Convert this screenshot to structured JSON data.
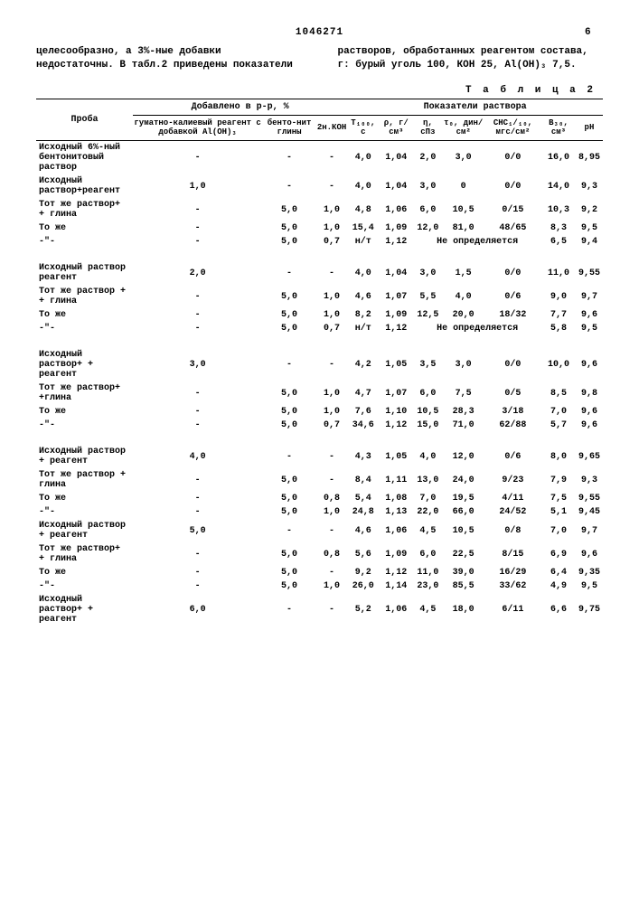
{
  "header": {
    "docnum": "1046271",
    "pg_right": "6"
  },
  "para": {
    "left": "целесообразно, а 3%-ные добавки недостаточны.\nВ табл.2 приведены показатели",
    "right": "растворов, обработанных реагентом состава, г: бурый уголь 100, КОН 25, Al(OH)₃ 7,5."
  },
  "table": {
    "caption": "Т а б л и ц а  2",
    "head": {
      "proba": "Проба",
      "group1": "Добавлено в р-р, %",
      "group2": "Показатели раствора",
      "c1": "гуматно-калиевый реагент с добавкой Al(OH)₃",
      "c2": "бенто-нит глины",
      "c3": "2н.КОН",
      "c4": "T₁₀₀, с",
      "c5": "ρ, г/см³",
      "c6": "η, сПз",
      "c7": "τ₀, дин/см²",
      "c8": "СНС₁/₁₀, мгс/см²",
      "c9": "В₃₀, см³",
      "c10": "pH"
    },
    "rows": [
      {
        "label": "Исходный 6%-ный бентонитовый раствор",
        "d": [
          "-",
          "-",
          "-",
          "4,0",
          "1,04",
          "2,0",
          "3,0",
          "0/0",
          "16,0",
          "8,95"
        ]
      },
      {
        "label": "Исходный раствор+реагент",
        "d": [
          "1,0",
          "-",
          "-",
          "4,0",
          "1,04",
          "3,0",
          "0",
          "0/0",
          "14,0",
          "9,3"
        ]
      },
      {
        "label": "Тот же раствор+ + глина",
        "d": [
          "-",
          "5,0",
          "1,0",
          "4,8",
          "1,06",
          "6,0",
          "10,5",
          "0/15",
          "10,3",
          "9,2"
        ]
      },
      {
        "label": "То же",
        "d": [
          "-",
          "5,0",
          "1,0",
          "15,4",
          "1,09",
          "12,0",
          "81,0",
          "48/65",
          "8,3",
          "9,5"
        ]
      },
      {
        "label": "-\"-",
        "d": [
          "-",
          "5,0",
          "0,7",
          "н/т",
          "1,12",
          "Не определяется",
          "",
          "",
          "6,5",
          "9,4"
        ],
        "merge": true
      },
      {
        "spacer": true
      },
      {
        "label": "Исходный раствор реагент",
        "d": [
          "2,0",
          "-",
          "-",
          "4,0",
          "1,04",
          "3,0",
          "1,5",
          "0/0",
          "11,0",
          "9,55"
        ]
      },
      {
        "label": "Тот же раствор + + глина",
        "d": [
          "-",
          "5,0",
          "1,0",
          "4,6",
          "1,07",
          "5,5",
          "4,0",
          "0/6",
          "9,0",
          "9,7"
        ]
      },
      {
        "label": "То же",
        "d": [
          "-",
          "5,0",
          "1,0",
          "8,2",
          "1,09",
          "12,5",
          "20,0",
          "18/32",
          "7,7",
          "9,6"
        ]
      },
      {
        "label": "-\"-",
        "d": [
          "-",
          "5,0",
          "0,7",
          "н/т",
          "1,12",
          "Не определяется",
          "",
          "",
          "5,8",
          "9,5"
        ],
        "merge": true
      },
      {
        "spacer": true
      },
      {
        "label": "Исходный раствор+ + реагент",
        "d": [
          "3,0",
          "-",
          "-",
          "4,2",
          "1,05",
          "3,5",
          "3,0",
          "0/0",
          "10,0",
          "9,6"
        ]
      },
      {
        "label": "Тот же раствор+ +глина",
        "d": [
          "-",
          "5,0",
          "1,0",
          "4,7",
          "1,07",
          "6,0",
          "7,5",
          "0/5",
          "8,5",
          "9,8"
        ]
      },
      {
        "label": "То же",
        "d": [
          "-",
          "5,0",
          "1,0",
          "7,6",
          "1,10",
          "10,5",
          "28,3",
          "3/18",
          "7,0",
          "9,6"
        ]
      },
      {
        "label": "-\"-",
        "d": [
          "-",
          "5,0",
          "0,7",
          "34,6",
          "1,12",
          "15,0",
          "71,0",
          "62/88",
          "5,7",
          "9,6"
        ]
      },
      {
        "spacer": true
      },
      {
        "label": "Исходный раствор + реагент",
        "d": [
          "4,0",
          "-",
          "-",
          "4,3",
          "1,05",
          "4,0",
          "12,0",
          "0/6",
          "8,0",
          "9,65"
        ]
      },
      {
        "label": "Тот же раствор + глина",
        "d": [
          "-",
          "5,0",
          "-",
          "8,4",
          "1,11",
          "13,0",
          "24,0",
          "9/23",
          "7,9",
          "9,3"
        ]
      },
      {
        "label": "То же",
        "d": [
          "-",
          "5,0",
          "0,8",
          "5,4",
          "1,08",
          "7,0",
          "19,5",
          "4/11",
          "7,5",
          "9,55"
        ]
      },
      {
        "label": "-\"-",
        "d": [
          "-",
          "5,0",
          "1,0",
          "24,8",
          "1,13",
          "22,0",
          "66,0",
          "24/52",
          "5,1",
          "9,45"
        ]
      },
      {
        "label": "Исходный раствор + реагент",
        "d": [
          "5,0",
          "-",
          "-",
          "4,6",
          "1,06",
          "4,5",
          "10,5",
          "0/8",
          "7,0",
          "9,7"
        ]
      },
      {
        "label": "Тот же раствор+ + глина",
        "d": [
          "-",
          "5,0",
          "0,8",
          "5,6",
          "1,09",
          "6,0",
          "22,5",
          "8/15",
          "6,9",
          "9,6"
        ]
      },
      {
        "label": "То же",
        "d": [
          "-",
          "5,0",
          "-",
          "9,2",
          "1,12",
          "11,0",
          "39,0",
          "16/29",
          "6,4",
          "9,35"
        ]
      },
      {
        "label": "-\"-",
        "d": [
          "-",
          "5,0",
          "1,0",
          "26,0",
          "1,14",
          "23,0",
          "85,5",
          "33/62",
          "4,9",
          "9,5"
        ]
      },
      {
        "label": "Исходный раствор+ + реагент",
        "d": [
          "6,0",
          "-",
          "-",
          "5,2",
          "1,06",
          "4,5",
          "18,0",
          "6/11",
          "6,6",
          "9,75"
        ]
      }
    ]
  }
}
